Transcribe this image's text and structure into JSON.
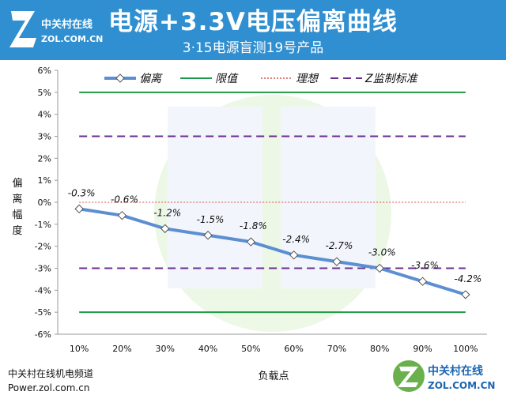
{
  "logo": {
    "cn": "中关村在线",
    "en": "ZOL.COM.CN"
  },
  "footer": {
    "channel": "中关村在线机电频道",
    "url": "Power.zol.com.cn"
  },
  "colors": {
    "banner": "#2f8fd0",
    "series": "#5b8fd2",
    "limit": "#1f9a48",
    "ideal": "#d9534f",
    "zstandard": "#6a2f8f"
  },
  "chart_data": {
    "type": "line",
    "title": "电源+3.3V电压偏离曲线",
    "subtitle": "3·15电源盲测19号产品",
    "xlabel": "负载点",
    "ylabel": "偏离幅度",
    "categories": [
      "10%",
      "20%",
      "30%",
      "40%",
      "50%",
      "60%",
      "70%",
      "80%",
      "90%",
      "100%"
    ],
    "ylim": [
      -6,
      6
    ],
    "yticks": [
      "6%",
      "5%",
      "4%",
      "3%",
      "2%",
      "1%",
      "0%",
      "-1%",
      "-2%",
      "-3%",
      "-4%",
      "-5%",
      "-6%"
    ],
    "series": [
      {
        "name": "偏离",
        "values": [
          -0.3,
          -0.6,
          -1.2,
          -1.5,
          -1.8,
          -2.4,
          -2.7,
          -3.0,
          -3.6,
          -4.2
        ],
        "labels": [
          "-0.3%",
          "-0.6%",
          "-1.2%",
          "-1.5%",
          "-1.8%",
          "-2.4%",
          "-2.7%",
          "-3.0%",
          "-3.6%",
          "-4.2%"
        ]
      }
    ],
    "reference_lines": [
      {
        "name": "限值",
        "values": [
          5,
          -5
        ],
        "style": "solid",
        "color": "#1f9a48"
      },
      {
        "name": "理想",
        "values": [
          0
        ],
        "style": "dotted",
        "color": "#d9534f"
      },
      {
        "name": "Z监制标准",
        "values": [
          3,
          -3
        ],
        "style": "dashed",
        "color": "#6a2f8f"
      }
    ],
    "legend_position": "top",
    "grid": false
  }
}
